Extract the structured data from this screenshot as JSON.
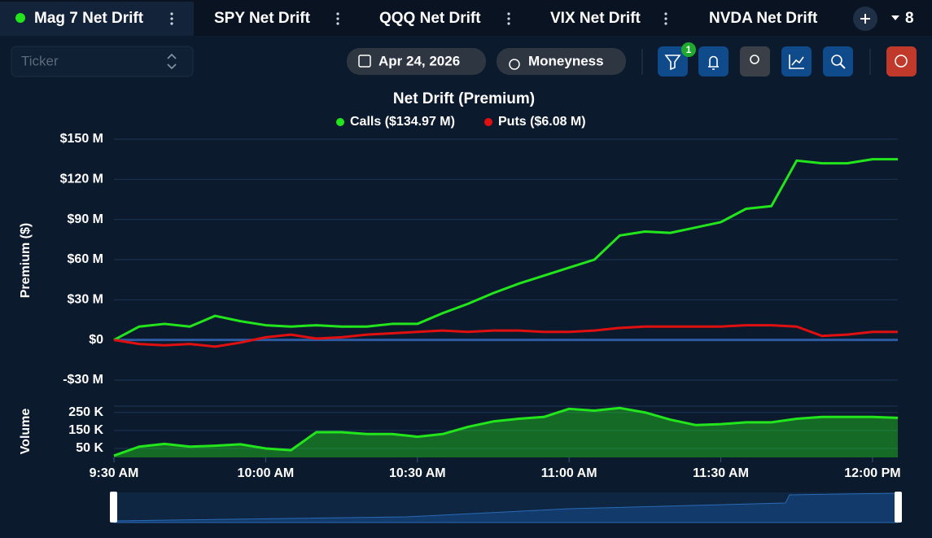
{
  "tabs": [
    "Mag 7 Net Drift",
    "SPY Net Drift",
    "QQQ Net Drift",
    "VIX Net Drift",
    "NVDA Net Drift"
  ],
  "hidden_tab_count": "8",
  "toolbar": {
    "ticker_placeholder": "Ticker",
    "date": "Apr 24, 2026",
    "moneyness": "Moneyness",
    "filter_badge": "1"
  },
  "chart_data": [
    {
      "type": "line",
      "title": "Net Drift (Premium)",
      "ylabel": "Premium ($)",
      "x": [
        570,
        575,
        580,
        585,
        590,
        595,
        600,
        605,
        610,
        615,
        620,
        625,
        630,
        635,
        640,
        645,
        650,
        655,
        660,
        665,
        670,
        675,
        680,
        685,
        690,
        695,
        700,
        705,
        710,
        715,
        720,
        725
      ],
      "xlim": [
        570,
        725
      ],
      "ylim": [
        -30,
        150
      ],
      "yticks": [
        {
          "value": 150,
          "label": "$150 M"
        },
        {
          "value": 120,
          "label": "$120 M"
        },
        {
          "value": 90,
          "label": "$90 M"
        },
        {
          "value": 60,
          "label": "$60 M"
        },
        {
          "value": 30,
          "label": "$30 M"
        },
        {
          "value": 0,
          "label": "$0"
        },
        {
          "value": -30,
          "label": "-$30 M"
        }
      ],
      "grid": true,
      "series": [
        {
          "name": "Calls ($134.97 M)",
          "color": "#22e51c",
          "values": [
            0,
            10,
            12,
            10,
            18,
            14,
            11,
            10,
            11,
            10,
            10,
            12,
            12,
            20,
            27,
            35,
            42,
            48,
            54,
            60,
            78,
            81,
            80,
            84,
            88,
            98,
            100,
            134,
            132,
            132,
            135,
            135
          ]
        },
        {
          "name": "Puts ($6.08 M)",
          "color": "#e01010",
          "values": [
            0,
            -3,
            -4,
            -3,
            -5,
            -2,
            2,
            4,
            1,
            2,
            4,
            5,
            6,
            7,
            6,
            7,
            7,
            6,
            6,
            7,
            9,
            10,
            10,
            10,
            10,
            11,
            11,
            10,
            3,
            4,
            6,
            6
          ]
        }
      ]
    },
    {
      "type": "area",
      "ylabel": "Volume",
      "x": [
        570,
        575,
        580,
        585,
        590,
        595,
        600,
        605,
        610,
        615,
        620,
        625,
        630,
        635,
        640,
        645,
        650,
        655,
        660,
        665,
        670,
        675,
        680,
        685,
        690,
        695,
        700,
        705,
        710,
        715,
        720,
        725
      ],
      "xlim": [
        570,
        725
      ],
      "xticks": [
        {
          "value": 570,
          "label": "9:30 AM"
        },
        {
          "value": 600,
          "label": "10:00 AM"
        },
        {
          "value": 630,
          "label": "10:30 AM"
        },
        {
          "value": 660,
          "label": "11:00 AM"
        },
        {
          "value": 690,
          "label": "11:30 AM"
        },
        {
          "value": 720,
          "label": "12:00 PM"
        }
      ],
      "ylim": [
        0,
        285
      ],
      "yticks": [
        {
          "value": 250,
          "label": "250 K"
        },
        {
          "value": 150,
          "label": "150 K"
        },
        {
          "value": 50,
          "label": "50 K"
        }
      ],
      "grid": true,
      "color": "#22e51c",
      "values": [
        10,
        60,
        75,
        60,
        65,
        73,
        50,
        40,
        140,
        140,
        130,
        130,
        115,
        130,
        170,
        200,
        215,
        225,
        270,
        260,
        275,
        250,
        210,
        180,
        185,
        195,
        195,
        215,
        225,
        225,
        225,
        220
      ]
    }
  ]
}
